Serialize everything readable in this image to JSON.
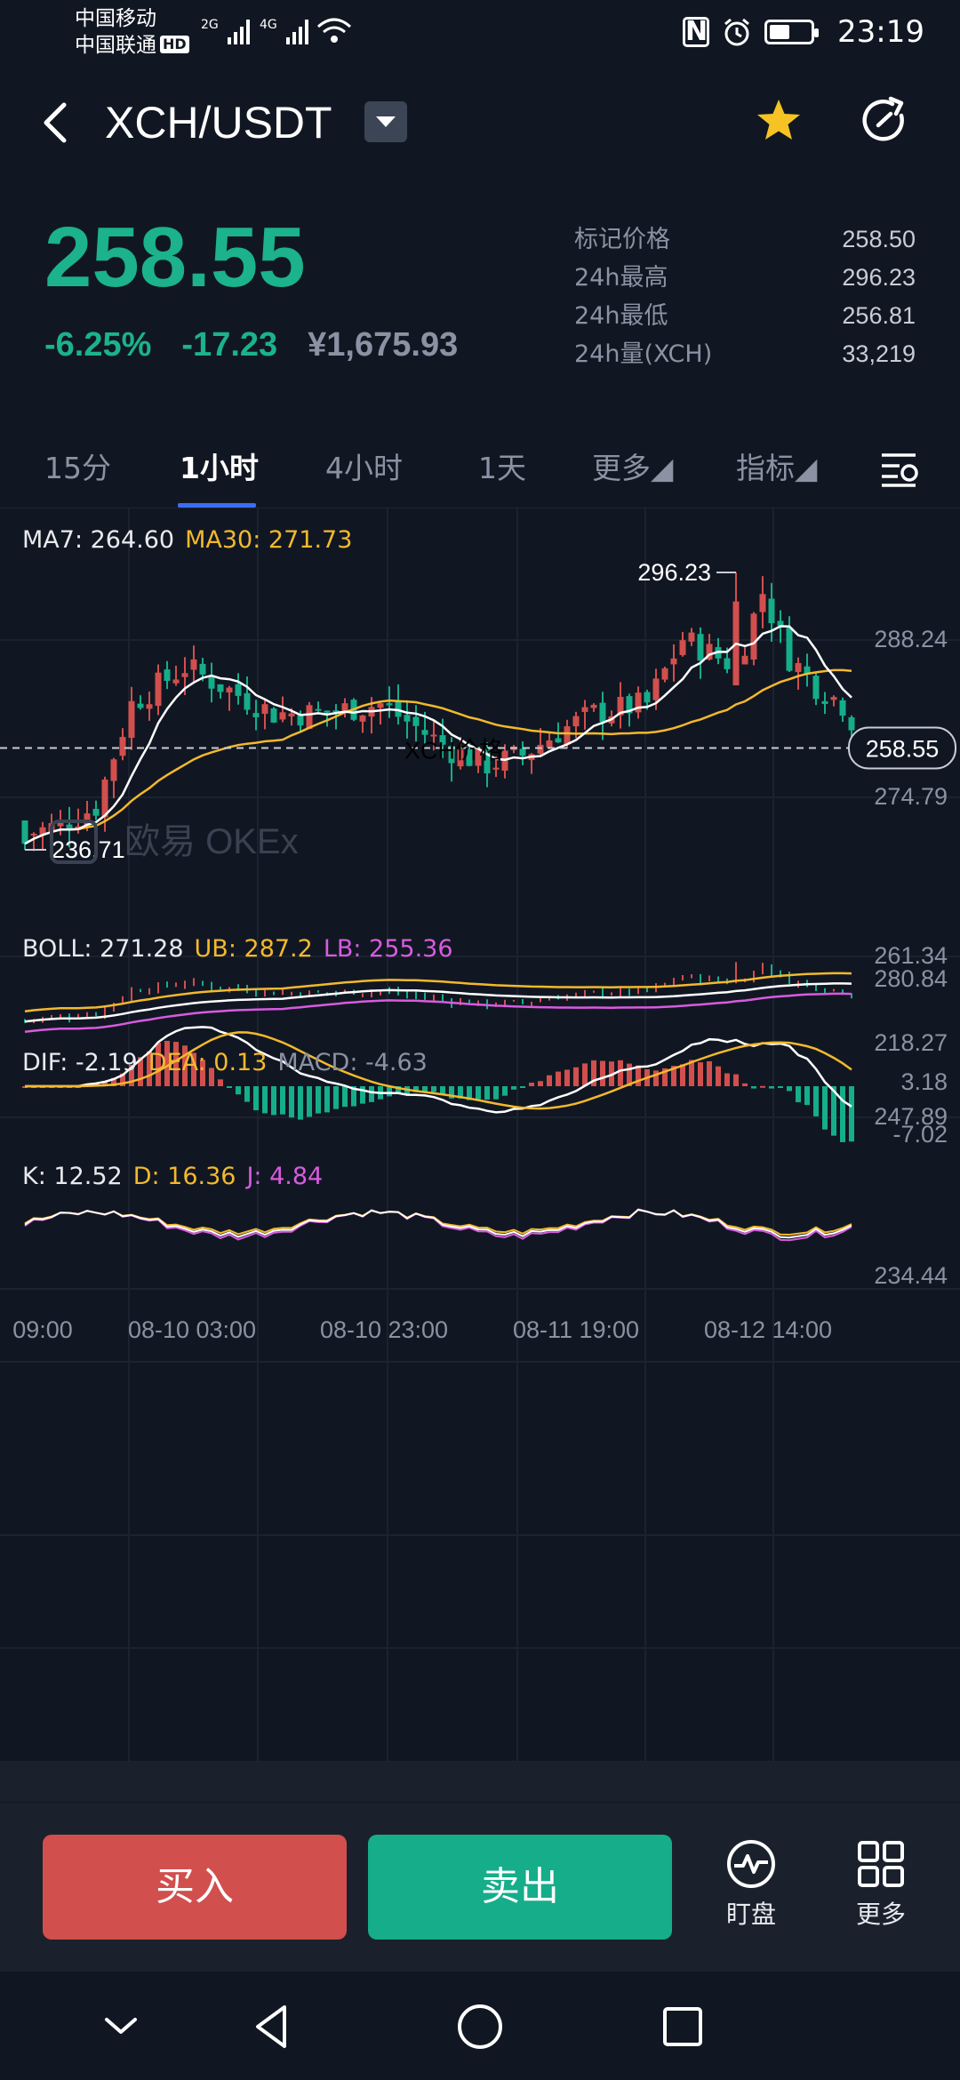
{
  "status_bar": {
    "carrier1": "中国移动",
    "carrier2": "中国联通",
    "hd": "HD",
    "net1": "2G",
    "net2": "4G",
    "nfc": "N",
    "time": "23:19"
  },
  "header": {
    "pair": "XCH/USDT"
  },
  "ticker": {
    "last_price": "258.55",
    "change_pct": "-6.25%",
    "change_abs": "-17.23",
    "cny_price": "¥1,675.93",
    "stats": [
      {
        "label": "标记价格",
        "value": "258.50"
      },
      {
        "label": "24h最高",
        "value": "296.23"
      },
      {
        "label": "24h最低",
        "value": "256.81"
      },
      {
        "label": "24h量(XCH)",
        "value": "33,219"
      }
    ]
  },
  "tabs": [
    {
      "label": "15分"
    },
    {
      "label": "1小时",
      "active": true
    },
    {
      "label": "4小时"
    },
    {
      "label": "1天"
    },
    {
      "label": "更多◢"
    },
    {
      "label": "指标◢"
    }
  ],
  "main_chart": {
    "ma7_label": "MA7: 264.60",
    "ma30_label": "MA30: 271.73",
    "high_label": "296.23",
    "low_label": "236.71",
    "current_price_tag": "258.55",
    "overlay_text": "XCH价格",
    "watermark": "欧易 OKEx",
    "y_ticks": [
      "288.24",
      "274.79",
      "261.34",
      "247.89",
      "234.44"
    ],
    "x_ticks": [
      "09:00",
      "08-10 03:00",
      "08-10 23:00",
      "08-11 19:00",
      "08-12 14:00"
    ]
  },
  "boll": {
    "boll_label": "BOLL: 271.28",
    "ub_label": "UB: 287.2",
    "lb_label": "LB: 255.36",
    "y_ticks": [
      "280.84",
      "218.27"
    ]
  },
  "macd": {
    "dif_label": "DIF: -2.19",
    "dea_label": "DEA: 0.13",
    "macd_label": "MACD: -4.63",
    "y_ticks": [
      "3.18",
      "-7.02"
    ]
  },
  "kdj": {
    "k_label": "K: 12.52",
    "d_label": "D: 16.36",
    "j_label": "J: 4.84"
  },
  "actions": {
    "buy": "买入",
    "sell": "卖出",
    "monitor": "盯盘",
    "more": "更多"
  },
  "colors": {
    "up": "#d14f4d",
    "down": "#15ad8a",
    "ma7": "#ffffff",
    "ma30": "#f3b92d",
    "lb": "#d85be0"
  }
}
